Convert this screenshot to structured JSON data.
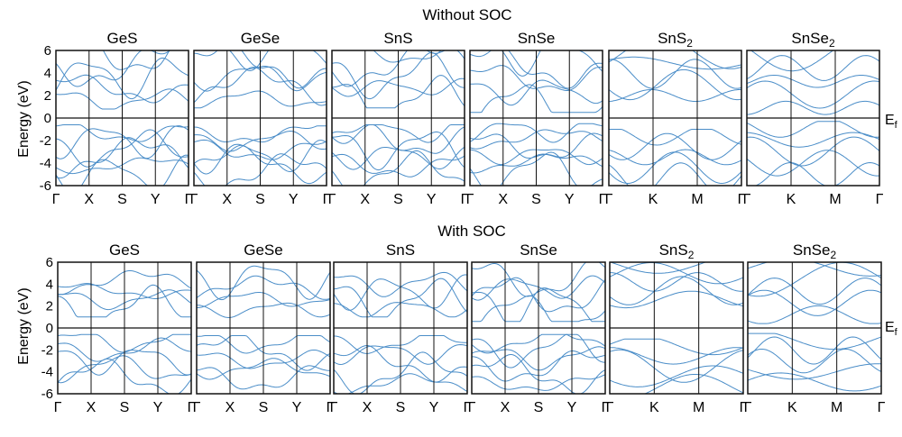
{
  "figure": {
    "row_titles": [
      "Without SOC",
      "With SOC"
    ],
    "ylabel": "Energy (eV)",
    "fermi_label": "E",
    "fermi_sub": "f",
    "line_color": "#4a8dc8",
    "frame_color": "#111111"
  },
  "chart_data": [
    {
      "type": "line",
      "row": "Without SOC",
      "panels": [
        {
          "title": "GeS",
          "title_sub": "",
          "kpoints": [
            "Γ",
            "X",
            "S",
            "Y",
            "Γ"
          ],
          "ylim": [
            -6,
            6
          ],
          "yticks": [
            6,
            4,
            2,
            0,
            -2,
            -4,
            -6
          ],
          "bands_count": 11,
          "cbm": 0.8,
          "vbm": -0.6,
          "valence_bottom": -5.6,
          "conduction_top": 6.0
        },
        {
          "title": "GeSe",
          "title_sub": "",
          "kpoints": [
            "Γ",
            "X",
            "S",
            "Y",
            "Γ"
          ],
          "ylim": [
            -6,
            6
          ],
          "bands_count": 11,
          "cbm": 0.9,
          "vbm": -0.7,
          "valence_bottom": -5.4,
          "conduction_top": 6.0
        },
        {
          "title": "SnS",
          "title_sub": "",
          "kpoints": [
            "Γ",
            "X",
            "S",
            "Y",
            "Γ"
          ],
          "ylim": [
            -6,
            6
          ],
          "bands_count": 11,
          "cbm": 0.9,
          "vbm": -0.6,
          "valence_bottom": -5.4,
          "conduction_top": 6.0
        },
        {
          "title": "SnSe",
          "title_sub": "",
          "kpoints": [
            "Γ",
            "X",
            "S",
            "Y",
            "Γ"
          ],
          "ylim": [
            -6,
            6
          ],
          "bands_count": 11,
          "cbm": 0.5,
          "vbm": -0.5,
          "valence_bottom": -5.3,
          "conduction_top": 6.0
        },
        {
          "title": "SnS",
          "title_sub": "2",
          "kpoints": [
            "Γ",
            "K",
            "M",
            "Γ"
          ],
          "ylim": [
            -6,
            6
          ],
          "bands_count": 10,
          "cbm": 1.2,
          "vbm": -1.0,
          "valence_bottom": -6.0,
          "conduction_top": 6.0
        },
        {
          "title": "SnSe",
          "title_sub": "2",
          "kpoints": [
            "Γ",
            "K",
            "M",
            "Γ"
          ],
          "ylim": [
            -6,
            6
          ],
          "bands_count": 10,
          "cbm": 0.1,
          "vbm": -0.3,
          "valence_bottom": -5.8,
          "conduction_top": 6.0
        }
      ]
    },
    {
      "type": "line",
      "row": "With SOC",
      "panels": [
        {
          "title": "GeS",
          "title_sub": "",
          "kpoints": [
            "Γ",
            "X",
            "S",
            "Y",
            "Γ"
          ],
          "ylim": [
            -6,
            6
          ],
          "yticks": [
            6,
            4,
            2,
            0,
            -2,
            -4,
            -6
          ],
          "bands_count": 9,
          "cbm": 1.0,
          "vbm": -0.6,
          "valence_bottom": -5.0,
          "conduction_top": 4.0
        },
        {
          "title": "GeSe",
          "title_sub": "",
          "kpoints": [
            "Γ",
            "X",
            "S",
            "Y",
            "Γ"
          ],
          "ylim": [
            -6,
            6
          ],
          "bands_count": 9,
          "cbm": 0.9,
          "vbm": -0.7,
          "valence_bottom": -5.0,
          "conduction_top": 4.4
        },
        {
          "title": "SnS",
          "title_sub": "",
          "kpoints": [
            "Γ",
            "X",
            "S",
            "Y",
            "Γ"
          ],
          "ylim": [
            -6,
            6
          ],
          "bands_count": 9,
          "cbm": 1.0,
          "vbm": -0.7,
          "valence_bottom": -5.8,
          "conduction_top": 3.8
        },
        {
          "title": "SnSe",
          "title_sub": "",
          "kpoints": [
            "Γ",
            "X",
            "S",
            "Y",
            "Γ"
          ],
          "ylim": [
            -6,
            6
          ],
          "bands_count": 11,
          "cbm": 0.6,
          "vbm": -0.6,
          "valence_bottom": -5.6,
          "conduction_top": 4.4
        },
        {
          "title": "SnS",
          "title_sub": "2",
          "kpoints": [
            "Γ",
            "K",
            "M",
            "Γ"
          ],
          "ylim": [
            -6,
            6
          ],
          "bands_count": 10,
          "cbm": 1.8,
          "vbm": -1.0,
          "valence_bottom": -6.0,
          "conduction_top": 5.8
        },
        {
          "title": "SnSe",
          "title_sub": "2",
          "kpoints": [
            "Γ",
            "K",
            "M",
            "Γ"
          ],
          "ylim": [
            -6,
            6
          ],
          "bands_count": 10,
          "cbm": 0.4,
          "vbm": -0.5,
          "valence_bottom": -5.6,
          "conduction_top": 5.8
        }
      ]
    }
  ]
}
